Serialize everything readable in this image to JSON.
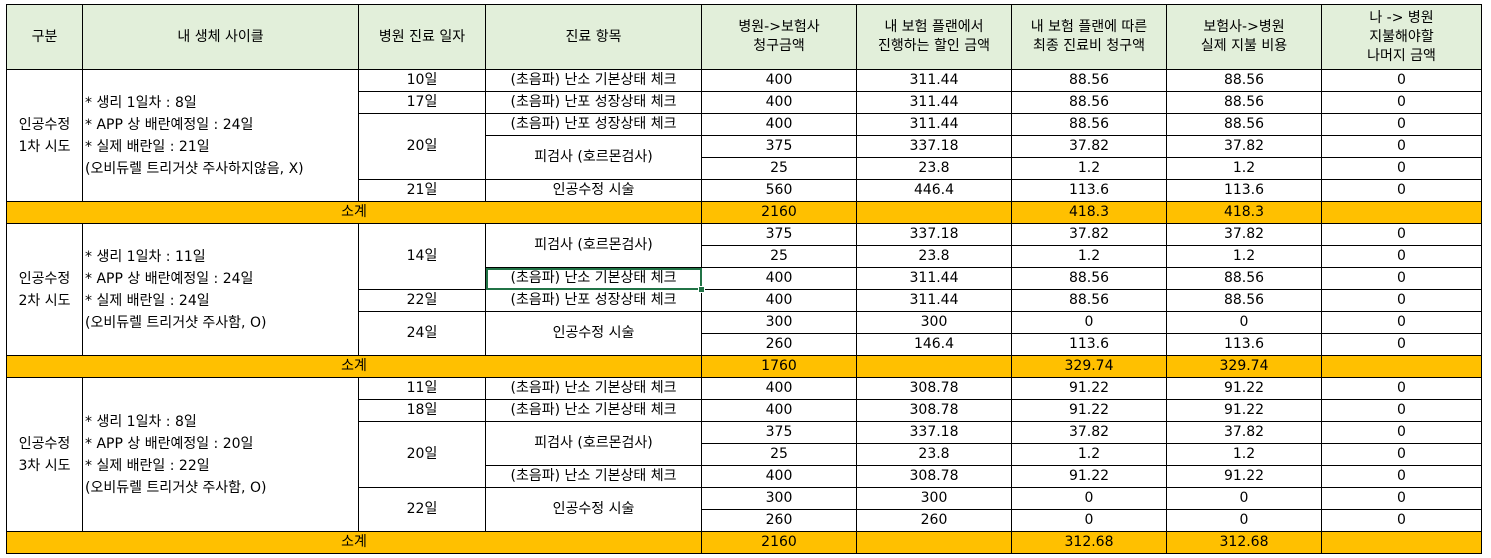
{
  "headers": [
    "구분",
    "내 생체 사이클",
    "병원 진료 일자",
    "진료 항목",
    "병원->보험사\n청구금액",
    "내 보험 플랜에서\n진행하는 할인 금액",
    "내 보험 플랜에 따른\n최종 진료비 청구액",
    "보험사->병원\n실제 지불 비용",
    "나 -> 병원\n지불해야할\n나머지 금액"
  ],
  "sections": [
    {
      "group": "인공수정\n1차 시도",
      "cycle": "* 생리 1일차 : 8일\n* APP 상 배란예정일 : 24일\n* 실제 배란일 : 21일\n  (오비듀렐 트리거샷 주사하지않음, X)",
      "days": [
        {
          "day": "10일",
          "span": 1
        },
        {
          "day": "17일",
          "span": 1
        },
        {
          "day": "20일",
          "span": 3
        },
        {
          "day": "21일",
          "span": 1
        }
      ],
      "items": [
        {
          "item": "(초음파) 난소 기본상태 체크",
          "span": 1
        },
        {
          "item": "(초음파) 난포 성장상태 체크",
          "span": 1
        },
        {
          "item": "(초음파) 난포 성장상태 체크",
          "span": 1
        },
        {
          "item": "피검사 (호르몬검사)",
          "span": 2
        },
        {
          "item": "인공수정 시술",
          "span": 1
        }
      ],
      "rows": [
        [
          "400",
          "311.44",
          "88.56",
          "88.56",
          "0"
        ],
        [
          "400",
          "311.44",
          "88.56",
          "88.56",
          "0"
        ],
        [
          "400",
          "311.44",
          "88.56",
          "88.56",
          "0"
        ],
        [
          "375",
          "337.18",
          "37.82",
          "37.82",
          "0"
        ],
        [
          "25",
          "23.8",
          "1.2",
          "1.2",
          "0"
        ],
        [
          "560",
          "446.4",
          "113.6",
          "113.6",
          "0"
        ]
      ],
      "subtotal": {
        "label": "소계",
        "billed": "2160",
        "discount": "",
        "final": "418.3",
        "paid": "418.3",
        "remaining": ""
      }
    },
    {
      "group": "인공수정\n2차 시도",
      "cycle": "* 생리 1일차 : 11일\n* APP 상 배란예정일 : 24일\n* 실제 배란일 : 24일\n  (오비듀렐 트리거샷 주사함, O)",
      "days": [
        {
          "day": "14일",
          "span": 3
        },
        {
          "day": "22일",
          "span": 1
        },
        {
          "day": "24일",
          "span": 2
        }
      ],
      "items": [
        {
          "item": "피검사 (호르몬검사)",
          "span": 2
        },
        {
          "item": "(초음파) 난소 기본상태 체크",
          "span": 1,
          "selected": true
        },
        {
          "item": "(초음파) 난포 성장상태 체크",
          "span": 1
        },
        {
          "item": "인공수정 시술",
          "span": 2
        }
      ],
      "rows": [
        [
          "375",
          "337.18",
          "37.82",
          "37.82",
          "0"
        ],
        [
          "25",
          "23.8",
          "1.2",
          "1.2",
          "0"
        ],
        [
          "400",
          "311.44",
          "88.56",
          "88.56",
          "0"
        ],
        [
          "400",
          "311.44",
          "88.56",
          "88.56",
          "0"
        ],
        [
          "300",
          "300",
          "0",
          "0",
          "0"
        ],
        [
          "260",
          "146.4",
          "113.6",
          "113.6",
          "0"
        ]
      ],
      "subtotal": {
        "label": "소계",
        "billed": "1760",
        "discount": "",
        "final": "329.74",
        "paid": "329.74",
        "remaining": ""
      }
    },
    {
      "group": "인공수정\n3차 시도",
      "cycle": "* 생리 1일차 : 8일\n* APP 상 배란예정일 : 20일\n* 실제 배란일 : 22일\n  (오비듀렐 트리거샷 주사함, O)",
      "days": [
        {
          "day": "11일",
          "span": 1
        },
        {
          "day": "18일",
          "span": 1
        },
        {
          "day": "20일",
          "span": 3
        },
        {
          "day": "22일",
          "span": 2
        }
      ],
      "items": [
        {
          "item": "(초음파) 난소 기본상태 체크",
          "span": 1
        },
        {
          "item": "(초음파) 난소 기본상태 체크",
          "span": 1
        },
        {
          "item": "피검사 (호르몬검사)",
          "span": 2
        },
        {
          "item": "(초음파) 난소 기본상태 체크",
          "span": 1
        },
        {
          "item": "인공수정 시술",
          "span": 2
        }
      ],
      "rows": [
        [
          "400",
          "308.78",
          "91.22",
          "91.22",
          "0"
        ],
        [
          "400",
          "308.78",
          "91.22",
          "91.22",
          "0"
        ],
        [
          "375",
          "337.18",
          "37.82",
          "37.82",
          "0"
        ],
        [
          "25",
          "23.8",
          "1.2",
          "1.2",
          "0"
        ],
        [
          "400",
          "308.78",
          "91.22",
          "91.22",
          "0"
        ],
        [
          "300",
          "300",
          "0",
          "0",
          "0"
        ],
        [
          "260",
          "260",
          "0",
          "0",
          "0"
        ]
      ],
      "subtotal": {
        "label": "소계",
        "billed": "2160",
        "discount": "",
        "final": "312.68",
        "paid": "312.68",
        "remaining": ""
      }
    }
  ],
  "colors": {
    "header_bg": "#e2efda",
    "subtotal_bg": "#ffc000",
    "selection": "#217346",
    "grid": "#d4d4d4"
  }
}
